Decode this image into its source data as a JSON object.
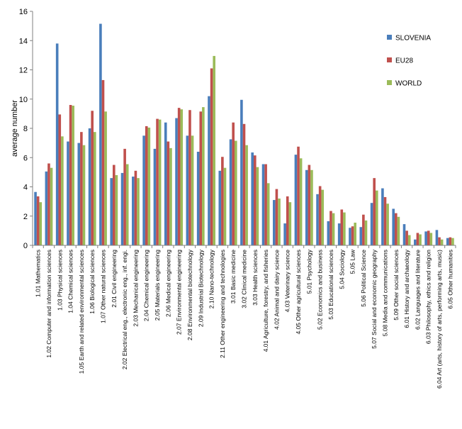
{
  "chart_data": {
    "type": "bar",
    "ylabel": "average number",
    "ylim": [
      0,
      16
    ],
    "ystep": 2,
    "yticks": [
      "0",
      "2",
      "4",
      "6",
      "8",
      "10",
      "12",
      "14",
      "16"
    ],
    "grid": false,
    "legend_position": "right",
    "categories": [
      "1.01 Mathematics",
      "1.02 Computer and information sciences",
      "1.03 Physical sciences",
      "1.04 Chemical sciences",
      "1.05 Earth and related environmental sciences",
      "1.06 Biological sciences",
      "1.07 Other natural sciences",
      "2.01 Civil engineering",
      "2.02 Electrical eng., electronic eng., inf. engi.",
      "2.03 Mechanical engineering",
      "2.04 Chemical engineering",
      "2.05 Materials engineering",
      "2.06 Medical engineering",
      "2.07 Environmental engineering",
      "2.08 Environmental biotechnology",
      "2.09 Industrial Biotechnology",
      "2.10 Nano-technology",
      "2.11 Other engineering and technologies",
      "3.01 Basic medicine",
      "3.02 Clinical medicine",
      "3.03 Health sciences",
      "4.01 Agriculture, forestry, and fisheries",
      "4.02 Animal and dairy science",
      "4.03 Veterinary science",
      "4.05 Other agricultural sciences",
      "5.01 Psychology",
      "5.02 Economics and business",
      "5.03 Educational sciences",
      "5.04 Sociology",
      "5.05 Law",
      "5.06 Political Science",
      "5.07 Social and economic geography",
      "5.08 Media and communications",
      "5.09 Other social sciences",
      "6.01 History and archaeology",
      "6.02 Languages and literature",
      "6.03 Philosophy, ethics and religion",
      "6.04 Art (arts, history of arts, performing arts, music)",
      "6.05 Other humanities"
    ],
    "series": [
      {
        "name": "SLOVENIA",
        "color": "#4a7ebb",
        "values": [
          3.65,
          5.05,
          13.8,
          7.1,
          7.0,
          8.0,
          15.15,
          4.6,
          4.95,
          4.7,
          7.5,
          6.6,
          8.4,
          8.7,
          7.5,
          6.4,
          10.2,
          5.1,
          7.25,
          9.95,
          6.35,
          5.55,
          3.1,
          1.5,
          6.2,
          5.15,
          3.5,
          1.65,
          1.5,
          1.2,
          1.25,
          2.9,
          3.9,
          2.5,
          1.45,
          0.4,
          0.95,
          1.05,
          0.5
        ]
      },
      {
        "name": "EU28",
        "color": "#c0504d",
        "values": [
          3.35,
          5.6,
          8.95,
          9.6,
          7.75,
          9.2,
          11.3,
          5.5,
          6.6,
          5.1,
          8.15,
          8.65,
          7.1,
          9.4,
          9.25,
          9.15,
          12.1,
          6.05,
          8.4,
          8.3,
          6.15,
          5.55,
          3.85,
          3.35,
          6.75,
          5.5,
          4.05,
          2.35,
          2.45,
          1.3,
          2.1,
          4.6,
          3.3,
          2.2,
          1.0,
          0.85,
          1.0,
          0.55,
          0.55
        ]
      },
      {
        "name": "WORLD",
        "color": "#9bbb59",
        "values": [
          2.95,
          5.3,
          7.45,
          9.55,
          6.85,
          7.75,
          9.15,
          4.8,
          5.55,
          4.6,
          8.05,
          8.6,
          6.65,
          9.3,
          7.5,
          9.45,
          12.95,
          5.3,
          7.15,
          6.85,
          5.35,
          4.25,
          3.2,
          2.95,
          5.95,
          5.15,
          3.8,
          2.2,
          2.25,
          1.55,
          1.7,
          3.75,
          2.85,
          1.95,
          0.7,
          0.75,
          0.85,
          0.4,
          0.5
        ]
      }
    ]
  }
}
